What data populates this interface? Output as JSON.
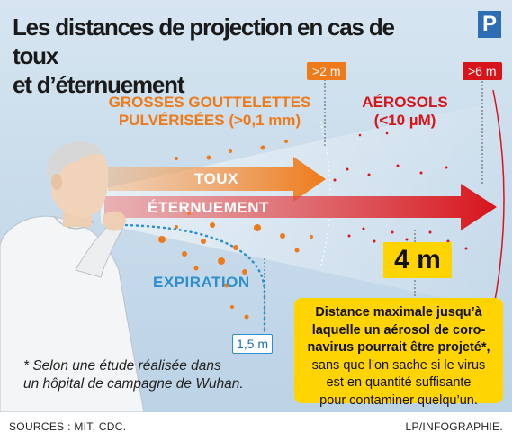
{
  "title": {
    "line1": "Les distances de projection en cas de toux",
    "line2": "et d’éternuement"
  },
  "logo": "P",
  "markers": {
    "two_m": ">2 m",
    "six_m": ">6 m"
  },
  "droplets": {
    "line1": "GROSSES GOUTTELETTES",
    "line2": "PULVÉRISÉES (>0,1 mm)"
  },
  "aerosols": {
    "line1": "AÉROSOLS",
    "line2": "(<10 µM)"
  },
  "arrows": {
    "toux": "TOUX",
    "eternuement": "ÉTERNUEMENT",
    "expiration": "EXPIRATION"
  },
  "expiration_distance": "1,5 m",
  "max_distance": "4 m",
  "info": {
    "bold_lines": [
      "Distance maximale jusqu’à",
      "laquelle un aérosol de coro-",
      "navirus pourrait être projeté*,"
    ],
    "lines": [
      "sans que l’on sache si le virus",
      "est en quantité suffisante",
      "pour contaminer quelqu’un."
    ]
  },
  "footnote": {
    "line1": "* Selon une étude réalisée dans",
    "line2": "un hôpital de campagne de Wuhan."
  },
  "sources": "SOURCES : MIT, CDC.",
  "credit": "LP/INFOGRAPHIE.",
  "colors": {
    "orange": "#ef7a1a",
    "red": "#d8141b",
    "blue": "#2e8fcf",
    "yellow": "#ffd400"
  }
}
